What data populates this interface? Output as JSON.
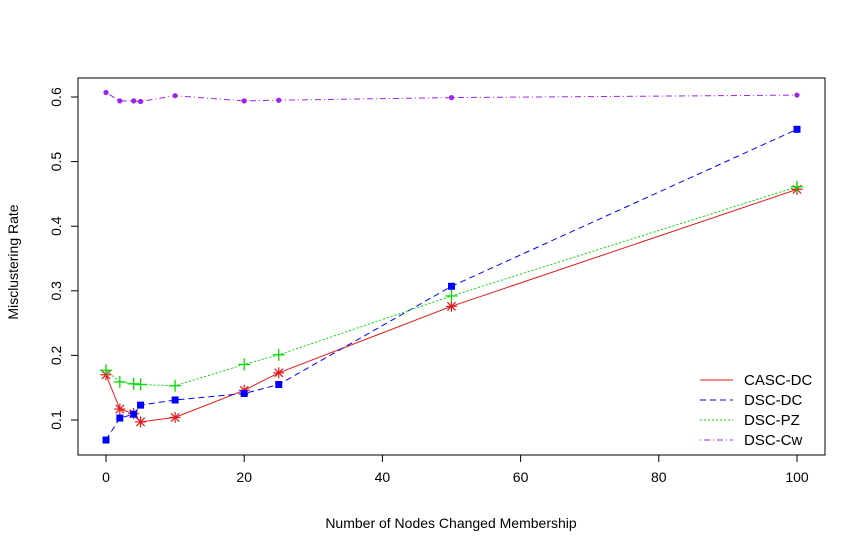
{
  "chart_data": {
    "type": "line",
    "title": "",
    "xlabel": "Number of Nodes Changed Membership",
    "ylabel": "Misclustering Rate",
    "xlim": [
      0,
      100
    ],
    "ylim": [
      0.05,
      0.62
    ],
    "x_ticks": [
      0,
      20,
      40,
      60,
      80,
      100
    ],
    "y_ticks": [
      0.1,
      0.2,
      0.3,
      0.4,
      0.5,
      0.6
    ],
    "x_tick_labels": [
      "0",
      "20",
      "40",
      "60",
      "80",
      "100"
    ],
    "y_tick_labels": [
      "0.1",
      "0.2",
      "0.3",
      "0.4",
      "0.5",
      "0.6"
    ],
    "grid": false,
    "legend_position": "bottom-right",
    "x": [
      0,
      2,
      4,
      5,
      10,
      20,
      25,
      50,
      100
    ],
    "series": [
      {
        "name": "CASC-DC",
        "color": "#e41a1c",
        "line": "solid",
        "marker": "asterisk",
        "values": [
          0.17,
          0.117,
          0.11,
          0.097,
          0.104,
          0.146,
          0.173,
          0.276,
          0.457
        ]
      },
      {
        "name": "DSC-DC",
        "color": "#0000ff",
        "line": "dashed",
        "marker": "square",
        "values": [
          0.069,
          0.103,
          0.109,
          0.123,
          0.131,
          0.141,
          0.155,
          0.307,
          0.55
        ]
      },
      {
        "name": "DSC-PZ",
        "color": "#00dd00",
        "line": "dotted",
        "marker": "plus",
        "values": [
          0.177,
          0.159,
          0.156,
          0.155,
          0.153,
          0.186,
          0.201,
          0.292,
          0.461
        ]
      },
      {
        "name": "DSC-Cw",
        "color": "#a020f0",
        "line": "dashdot",
        "marker": "dot",
        "values": [
          0.607,
          0.594,
          0.594,
          0.593,
          0.602,
          0.594,
          0.595,
          0.599,
          0.603
        ]
      }
    ]
  }
}
